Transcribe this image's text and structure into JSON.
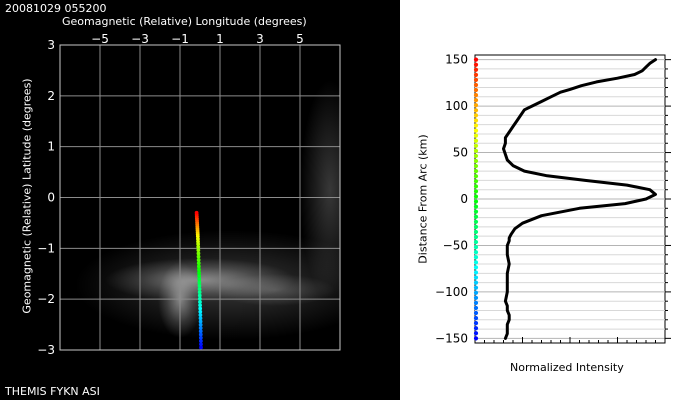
{
  "header": {
    "timestamp": "20081029 055200"
  },
  "footer": {
    "instrument": "THEMIS FYKN ASI"
  },
  "colors": {
    "left_bg": "#000000",
    "grid": "#8c8c8c",
    "frame": "#c8c8c8",
    "text_left": "#ffffff",
    "text_right": "#000000",
    "profile_line": "#000000"
  },
  "chart_data": [
    {
      "type": "scatter",
      "title": "",
      "xlabel": "Geomagnetic (Relative) Longitude (degrees)",
      "ylabel": "Geomagnetic (Relative) Latitude (degrees)",
      "xlim": [
        -7,
        7
      ],
      "ylim": [
        -3,
        3
      ],
      "xticks": [
        -5,
        -3,
        -1,
        1,
        3,
        5
      ],
      "xtick_labels": [
        "−5",
        "−3",
        "−1",
        "1",
        "3",
        "5"
      ],
      "yticks": [
        3,
        2,
        1,
        0,
        -1,
        -2,
        -3
      ],
      "ytick_labels": [
        "3",
        "2",
        "1",
        "0",
        "−1",
        "−2",
        "−3"
      ],
      "grid": true,
      "background": "all-sky camera image (aurora glow, grayscale)",
      "colormap": "rainbow: blue at lowest latitude to red at highest",
      "series": [
        {
          "x": [
            0.05,
            0.04,
            0.03,
            0.01,
            -0.01,
            -0.03,
            -0.05,
            -0.07,
            -0.09,
            -0.11,
            -0.13,
            -0.15,
            -0.17
          ],
          "y": [
            -2.95,
            -2.7,
            -2.45,
            -2.2,
            -1.95,
            -1.7,
            -1.45,
            -1.2,
            -0.95,
            -0.75,
            -0.6,
            -0.45,
            -0.3
          ]
        }
      ]
    },
    {
      "type": "line",
      "title": "",
      "xlabel": "Normalized Intensity",
      "ylabel": "Distance From Arc (km)",
      "xlim": [
        0,
        1
      ],
      "ylim": [
        -155,
        155
      ],
      "yticks": [
        150,
        100,
        50,
        0,
        -50,
        -100,
        -150
      ],
      "ytick_labels": [
        "150",
        "100",
        "50",
        "0",
        "−50",
        "−100",
        "−150"
      ],
      "grid": true,
      "colorbar": "rainbow along left axis: blue at −150 km to red at 150 km",
      "series": [
        {
          "x": [
            0.16,
            0.17,
            0.17,
            0.17,
            0.18,
            0.18,
            0.17,
            0.17,
            0.16,
            0.17,
            0.17,
            0.17,
            0.18,
            0.17,
            0.17,
            0.18,
            0.18,
            0.19,
            0.21,
            0.25,
            0.35,
            0.55,
            0.79,
            0.9,
            0.95,
            0.92,
            0.8,
            0.58,
            0.38,
            0.26,
            0.2,
            0.17,
            0.16,
            0.15,
            0.16,
            0.16,
            0.18,
            0.2,
            0.22,
            0.24,
            0.26,
            0.3,
            0.35,
            0.4,
            0.45,
            0.5,
            0.56,
            0.64,
            0.75,
            0.84,
            0.88,
            0.9,
            0.92,
            0.95
          ],
          "y": [
            -150,
            -145,
            -140,
            -135,
            -130,
            -125,
            -120,
            -115,
            -110,
            -100,
            -90,
            -80,
            -70,
            -60,
            -50,
            -45,
            -42,
            -38,
            -32,
            -26,
            -18,
            -10,
            -5,
            0,
            5,
            10,
            15,
            20,
            25,
            30,
            36,
            42,
            48,
            54,
            60,
            66,
            72,
            78,
            84,
            90,
            96,
            100,
            105,
            110,
            115,
            118,
            122,
            126,
            130,
            134,
            138,
            142,
            146,
            150
          ]
        }
      ]
    }
  ]
}
